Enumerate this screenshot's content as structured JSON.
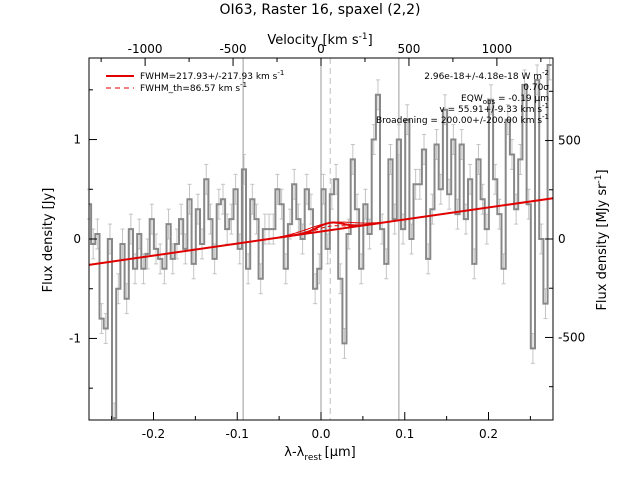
{
  "chart_data": {
    "type": "line",
    "title": "OI63, Raster 16, spaxel (2,2)",
    "xlabel": "λ-λ",
    "xlabel_sub": "rest",
    "xlabel_unit": "[μm]",
    "ylabel": "Flux density [Jy]",
    "ylabel_right": "Flux density [MJy sr",
    "ylabel_right_sup": "-1",
    "ylabel_right_end": "]",
    "top_axis_label": "Velocity [km s",
    "top_axis_label_sup": "-1",
    "top_axis_label_end": "]",
    "xlim": [
      -0.277,
      0.277
    ],
    "ylim": [
      -1.82,
      1.82
    ],
    "x_ticks": [
      "-0.2",
      "-0.1",
      "0.0",
      "0.1",
      "0.2"
    ],
    "y_ticks": [
      "-1",
      "0",
      "1"
    ],
    "right_ticks": [
      "-500",
      "0",
      "500"
    ],
    "top_ticks": [
      "-1000",
      "-500",
      "0",
      "500",
      "1000"
    ],
    "vertical_lines_solid": [
      -0.093,
      0.0,
      0.093
    ],
    "vertical_line_dashed": 0.011,
    "legend": {
      "placement": "top-left",
      "entries": [
        {
          "label": "FWHM=217.93+/-217.93 km s",
          "sup": "-1",
          "style": "solid"
        },
        {
          "label": "FWHM_th=86.57 km s",
          "sup": "-1",
          "style": "dashed"
        }
      ]
    },
    "annotations": {
      "flux": "2.96e-18+/-4.18e-18 W m",
      "flux_sup": "-2",
      "sigma": "0.70σ",
      "eqw": "EQW",
      "eqw_sub": "obs",
      "eqw_val": " = -0.19 μm",
      "velocity": "v = 55.91+/-9.33 km s",
      "velocity_sup": "-1",
      "broadening": "Broadening = 200.00+/-200.00 km s",
      "broadening_sup": "-1"
    },
    "continuum": {
      "x": [
        -0.277,
        0.277
      ],
      "y": [
        -0.26,
        0.41
      ]
    },
    "line_fit": {
      "center": 0.011,
      "amplitude": 0.075,
      "sigma": 0.0155
    },
    "series": [
      {
        "role": "spectrum",
        "x": [
          -0.277,
          -0.272,
          -0.267,
          -0.262,
          -0.257,
          -0.252,
          -0.247,
          -0.242,
          -0.237,
          -0.232,
          -0.227,
          -0.222,
          -0.217,
          -0.212,
          -0.207,
          -0.202,
          -0.197,
          -0.192,
          -0.187,
          -0.182,
          -0.177,
          -0.172,
          -0.167,
          -0.162,
          -0.157,
          -0.152,
          -0.147,
          -0.142,
          -0.137,
          -0.132,
          -0.127,
          -0.122,
          -0.117,
          -0.112,
          -0.107,
          -0.102,
          -0.097,
          -0.092,
          -0.087,
          -0.082,
          -0.077,
          -0.072,
          -0.067,
          -0.062,
          -0.057,
          -0.052,
          -0.047,
          -0.042,
          -0.037,
          -0.032,
          -0.027,
          -0.022,
          -0.017,
          -0.012,
          -0.007,
          -0.002,
          0.003,
          0.008,
          0.013,
          0.018,
          0.023,
          0.028,
          0.033,
          0.038,
          0.043,
          0.048,
          0.053,
          0.058,
          0.063,
          0.068,
          0.073,
          0.078,
          0.083,
          0.088,
          0.093,
          0.098,
          0.103,
          0.108,
          0.113,
          0.118,
          0.123,
          0.128,
          0.133,
          0.138,
          0.143,
          0.148,
          0.153,
          0.158,
          0.163,
          0.168,
          0.173,
          0.178,
          0.183,
          0.188,
          0.193,
          0.198,
          0.203,
          0.208,
          0.213,
          0.218,
          0.223,
          0.228,
          0.233,
          0.238,
          0.243,
          0.248,
          0.253,
          0.258,
          0.263,
          0.268,
          0.273
        ],
        "y": [
          0.35,
          -0.05,
          0.05,
          -0.8,
          -0.9,
          0.0,
          -1.8,
          -0.5,
          -0.05,
          -0.6,
          0.1,
          -0.3,
          0.05,
          -0.3,
          -0.15,
          0.2,
          -0.1,
          -0.2,
          -0.3,
          0.15,
          -0.2,
          -0.05,
          0.2,
          -0.1,
          0.4,
          -0.25,
          0.3,
          -0.05,
          0.6,
          0.2,
          -0.2,
          0.35,
          0.4,
          0.1,
          0.2,
          0.5,
          -0.1,
          0.7,
          -0.3,
          0.4,
          0.2,
          -0.4,
          0.1,
          0.1,
          0.1,
          0.5,
          0.35,
          -0.3,
          0.15,
          0.55,
          0.2,
          0.0,
          0.5,
          0.3,
          -0.5,
          -0.3,
          0.5,
          -0.1,
          0.45,
          0.6,
          -0.4,
          -1.05,
          0.05,
          0.8,
          0.3,
          -0.3,
          0.35,
          0.05,
          1.0,
          1.45,
          0.1,
          -0.25,
          0.8,
          0.2,
          1.0,
          0.1,
          1.2,
          0.0,
          0.55,
          0.55,
          0.9,
          -0.2,
          0.3,
          0.95,
          0.5,
          1.3,
          0.45,
          1.0,
          0.25,
          0.95,
          0.2,
          0.6,
          -0.25,
          0.8,
          0.4,
          0.1,
          1.4,
          0.6,
          0.25,
          -0.3,
          1.2,
          0.85,
          0.3,
          0.8,
          1.55,
          0.35,
          -1.1,
          1.6,
          0.0,
          -0.65,
          1.75
        ]
      }
    ]
  }
}
